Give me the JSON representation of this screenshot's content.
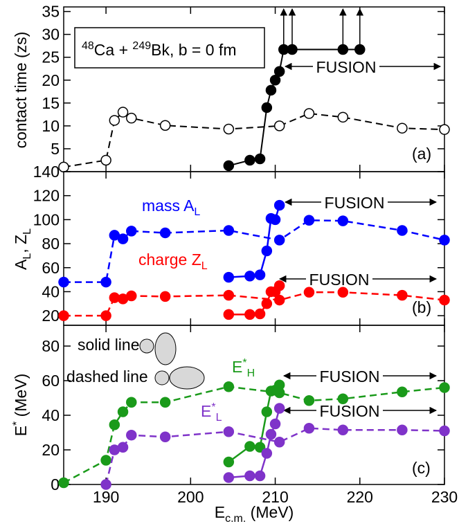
{
  "chart_data": [
    {
      "type": "line",
      "panel_label": "(a)",
      "ylabel": [
        {
          "text": "contact time (zs)"
        }
      ],
      "box_text": [
        {
          "text": "48",
          "sup": true
        },
        {
          "text": "Ca + "
        },
        {
          "text": "249",
          "sup": true
        },
        {
          "text": "Bk, b = 0 fm"
        }
      ],
      "annotations": [
        "FUSION"
      ],
      "xlim": [
        185,
        230
      ],
      "xticks": [
        190,
        200,
        210,
        220,
        230
      ],
      "ylim": [
        0,
        36
      ],
      "yticks": [
        5,
        10,
        15,
        20,
        25,
        30,
        35
      ],
      "series": [
        {
          "color": "#000000",
          "style": "dashed",
          "filled": false,
          "x": [
            185,
            190,
            191,
            192,
            193,
            197,
            204.5,
            210.5,
            214,
            218,
            225,
            230
          ],
          "values": [
            1,
            2.5,
            11.2,
            13,
            11.7,
            10.1,
            9.3,
            10,
            12.7,
            11.9,
            9.5,
            9.2
          ]
        },
        {
          "color": "#000000",
          "style": "solid",
          "filled": true,
          "arrows_from": 7,
          "x": [
            204.5,
            207,
            208.2,
            209,
            209.5,
            210,
            210.5,
            211,
            212,
            218,
            220
          ],
          "values": [
            1.3,
            2.5,
            2.8,
            14,
            17.8,
            20,
            21.9,
            26.7,
            26.7,
            26.7,
            26.7
          ]
        }
      ]
    },
    {
      "type": "line",
      "panel_label": "(b)",
      "ylabel": [
        {
          "text": "A"
        },
        {
          "text": "L",
          "sub": true
        },
        {
          "text": ", Z"
        },
        {
          "text": "L",
          "sub": true
        }
      ],
      "annotations": [
        "FUSION",
        "FUSION"
      ],
      "xlim": [
        185,
        230
      ],
      "xticks": [
        190,
        200,
        210,
        220,
        230
      ],
      "ylim": [
        12,
        140
      ],
      "yticks": [
        20,
        40,
        60,
        80,
        100,
        120,
        140
      ],
      "series": [
        {
          "color": "#0000ff",
          "style": "dashed",
          "filled": true,
          "label": [
            {
              "text": "mass A"
            },
            {
              "text": "L",
              "sub": true
            }
          ],
          "x": [
            185,
            190,
            191,
            192,
            193,
            197,
            204.5,
            210.5,
            214,
            218,
            225,
            230
          ],
          "values": [
            48,
            48,
            87,
            84,
            90.5,
            89,
            91,
            83,
            99.5,
            99,
            91,
            83
          ]
        },
        {
          "color": "#0000ff",
          "style": "solid",
          "filled": true,
          "x": [
            204.5,
            207,
            208.2,
            209,
            209.5,
            210,
            210.5
          ],
          "values": [
            52,
            53,
            54,
            74,
            101,
            100,
            112
          ]
        },
        {
          "color": "#ff0000",
          "style": "dashed",
          "filled": true,
          "label": [
            {
              "text": "charge Z"
            },
            {
              "text": "L",
              "sub": true
            }
          ],
          "x": [
            185,
            190,
            191,
            192,
            193,
            197,
            204.5,
            210.5,
            214,
            218,
            225,
            230
          ],
          "values": [
            20,
            20,
            35,
            34,
            36.5,
            36,
            37,
            33,
            39.5,
            39.5,
            37,
            33
          ]
        },
        {
          "color": "#ff0000",
          "style": "solid",
          "filled": true,
          "x": [
            204.5,
            207,
            208.2,
            209,
            209.5,
            210,
            210.5
          ],
          "values": [
            21,
            21,
            21.5,
            30,
            40,
            40,
            45
          ]
        }
      ]
    },
    {
      "type": "line",
      "panel_label": "(c)",
      "ylabel": [
        {
          "text": "E"
        },
        {
          "text": "*",
          "sup": true
        },
        {
          "text": " (MeV)"
        }
      ],
      "xlabel": [
        {
          "text": "E"
        },
        {
          "text": "c.m.",
          "sub": true
        },
        {
          "text": " (MeV)"
        }
      ],
      "legend_texts": [
        "solid line",
        "dashed line"
      ],
      "annotations": [
        "FUSION",
        "FUSION"
      ],
      "xlim": [
        185,
        230
      ],
      "xticks": [
        190,
        200,
        210,
        220,
        230
      ],
      "ylim": [
        0,
        92
      ],
      "yticks": [
        0,
        20,
        40,
        60,
        80
      ],
      "series": [
        {
          "color": "#1a9a1a",
          "style": "dashed",
          "filled": true,
          "label": [
            {
              "text": "E"
            },
            {
              "text": "*",
              "sup": true
            },
            {
              "text": "H",
              "sub": true
            }
          ],
          "x": [
            185,
            190,
            191,
            192,
            193,
            197,
            204.5,
            210.5,
            214,
            218,
            225,
            230
          ],
          "values": [
            1,
            14,
            34.5,
            42,
            47.5,
            47.5,
            56.5,
            53,
            48.5,
            49.5,
            53.5,
            56
          ]
        },
        {
          "color": "#1a9a1a",
          "style": "solid",
          "filled": true,
          "x": [
            204.5,
            207,
            208.2,
            209,
            209.5,
            210,
            210.5
          ],
          "values": [
            13,
            22,
            21.5,
            42,
            54,
            54.5,
            57.5
          ]
        },
        {
          "color": "#7f33c9",
          "style": "dashed",
          "filled": true,
          "label": [
            {
              "text": "E"
            },
            {
              "text": "*",
              "sup": true
            },
            {
              "text": "L",
              "sub": true
            }
          ],
          "x": [
            190,
            191,
            192,
            193,
            197,
            204.5,
            210.5,
            214,
            218,
            225,
            230
          ],
          "values": [
            0,
            20,
            21.5,
            28.5,
            27.5,
            30.5,
            24.5,
            32.5,
            31.5,
            31.5,
            31
          ]
        },
        {
          "color": "#7f33c9",
          "style": "solid",
          "filled": true,
          "x": [
            204.5,
            207,
            208.2,
            209,
            209.5,
            210,
            210.5
          ],
          "values": [
            4,
            5,
            5,
            18,
            29,
            35,
            44
          ]
        }
      ]
    }
  ]
}
